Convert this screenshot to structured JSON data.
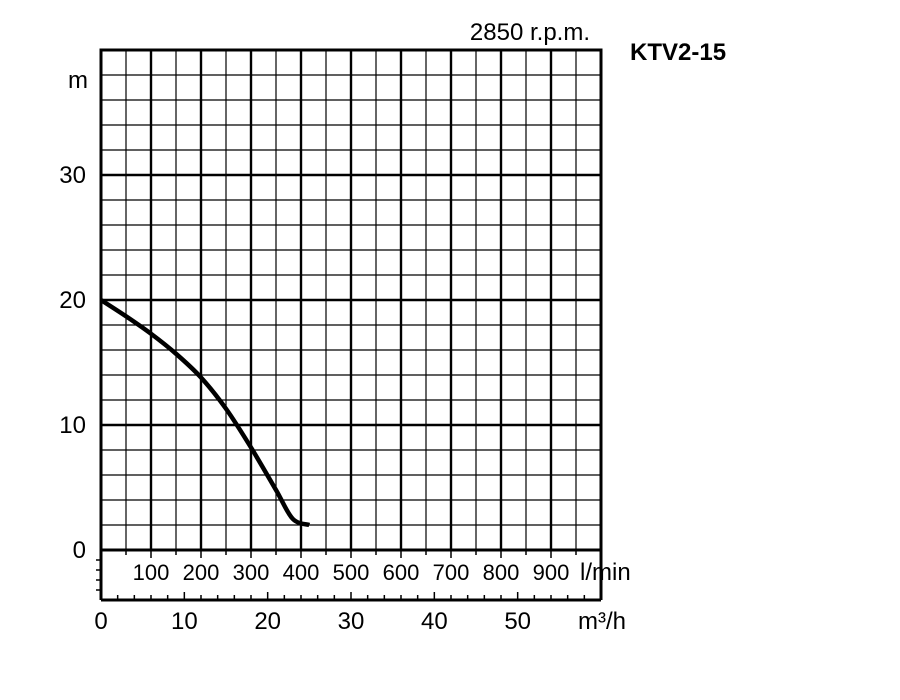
{
  "chart_data": {
    "type": "line",
    "title": "KTV2-15",
    "subtitle": "2850 r.p.m.",
    "ylabel": "m",
    "ylim": [
      0,
      40
    ],
    "yticks": [
      0,
      10,
      20,
      30
    ],
    "x_lmin": {
      "label": "l/min",
      "ticks": [
        100,
        200,
        300,
        400,
        500,
        600,
        700,
        800,
        900
      ]
    },
    "x_m3h": {
      "label": "m³/h",
      "xlim": [
        0,
        60
      ],
      "ticks": [
        0,
        10,
        20,
        30,
        40,
        50
      ]
    },
    "grid": true,
    "series": [
      {
        "x": [
          0,
          3,
          6,
          9,
          12,
          15,
          18,
          21,
          23,
          25
        ],
        "y": [
          20,
          18.7,
          17.3,
          15.7,
          13.8,
          11.3,
          8.2,
          4.8,
          2.5,
          2
        ]
      }
    ]
  }
}
